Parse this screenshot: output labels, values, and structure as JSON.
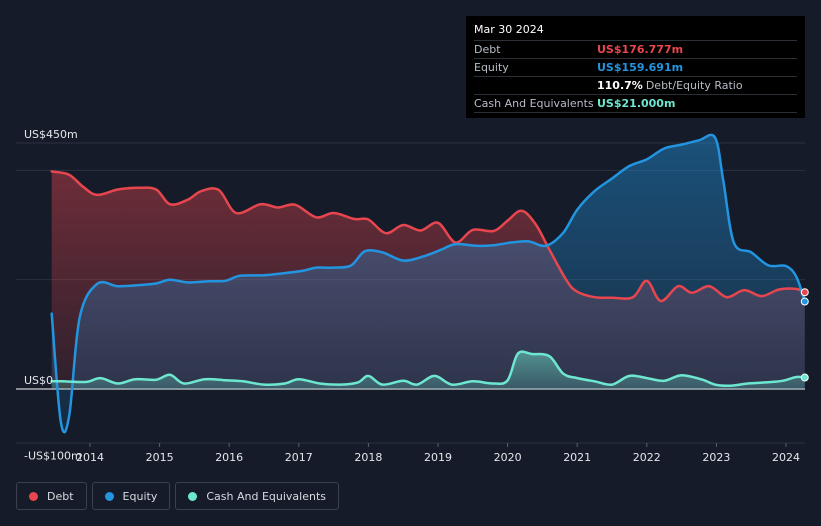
{
  "tooltip": {
    "date": "Mar 30 2024",
    "rows": [
      {
        "label": "Debt",
        "value": "US$176.777m",
        "color": "#e8464f"
      },
      {
        "label": "Equity",
        "value": "US$159.691m",
        "color": "#2394df"
      },
      {
        "label": "",
        "value": "110.7%",
        "unit": "Debt/Equity Ratio",
        "color": "#ffffff"
      },
      {
        "label": "Cash And Equivalents",
        "value": "US$21.000m",
        "color": "#6ee7d0"
      }
    ]
  },
  "legend": [
    {
      "label": "Debt",
      "color": "#e8464f"
    },
    {
      "label": "Equity",
      "color": "#2394df"
    },
    {
      "label": "Cash And Equivalents",
      "color": "#6ee7d0"
    }
  ],
  "chart_data": {
    "type": "area",
    "title": "",
    "xlabel": "",
    "ylabel": "",
    "ylim": [
      -100,
      450
    ],
    "y_tick_labels": [
      {
        "value": 450,
        "label": "US$450m"
      },
      {
        "value": 0,
        "label": "US$0"
      },
      {
        "value": -100,
        "label": "-US$100m"
      }
    ],
    "x_ticks": [
      "2014",
      "2015",
      "2016",
      "2017",
      "2018",
      "2019",
      "2020",
      "2021",
      "2022",
      "2023",
      "2024"
    ],
    "xlim": [
      2013.4,
      2024.27
    ],
    "legend_position": "bottom-left",
    "series": [
      {
        "name": "Debt",
        "color": "#e8464f",
        "points": [
          [
            2013.45,
            398
          ],
          [
            2013.7,
            392
          ],
          [
            2013.9,
            370
          ],
          [
            2014.1,
            355
          ],
          [
            2014.4,
            365
          ],
          [
            2014.7,
            368
          ],
          [
            2014.95,
            365
          ],
          [
            2015.15,
            338
          ],
          [
            2015.4,
            346
          ],
          [
            2015.6,
            362
          ],
          [
            2015.85,
            364
          ],
          [
            2016.1,
            322
          ],
          [
            2016.45,
            338
          ],
          [
            2016.7,
            332
          ],
          [
            2016.95,
            337
          ],
          [
            2017.25,
            314
          ],
          [
            2017.5,
            322
          ],
          [
            2017.8,
            311
          ],
          [
            2018.0,
            310
          ],
          [
            2018.25,
            285
          ],
          [
            2018.5,
            300
          ],
          [
            2018.75,
            290
          ],
          [
            2019.0,
            304
          ],
          [
            2019.25,
            268
          ],
          [
            2019.5,
            291
          ],
          [
            2019.8,
            289
          ],
          [
            2020.0,
            308
          ],
          [
            2020.2,
            326
          ],
          [
            2020.4,
            302
          ],
          [
            2020.6,
            255
          ],
          [
            2020.85,
            198
          ],
          [
            2021.0,
            178
          ],
          [
            2021.25,
            168
          ],
          [
            2021.5,
            167
          ],
          [
            2021.8,
            168
          ],
          [
            2022.0,
            198
          ],
          [
            2022.2,
            161
          ],
          [
            2022.45,
            188
          ],
          [
            2022.65,
            176
          ],
          [
            2022.9,
            188
          ],
          [
            2023.15,
            168
          ],
          [
            2023.4,
            181
          ],
          [
            2023.65,
            170
          ],
          [
            2023.9,
            182
          ],
          [
            2024.15,
            183
          ],
          [
            2024.27,
            177
          ]
        ]
      },
      {
        "name": "Equity",
        "color": "#2394df",
        "points": [
          [
            2013.45,
            138
          ],
          [
            2013.58,
            -60
          ],
          [
            2013.7,
            -50
          ],
          [
            2013.85,
            130
          ],
          [
            2014.1,
            192
          ],
          [
            2014.4,
            188
          ],
          [
            2014.7,
            190
          ],
          [
            2014.95,
            193
          ],
          [
            2015.15,
            200
          ],
          [
            2015.4,
            195
          ],
          [
            2015.7,
            197
          ],
          [
            2015.95,
            198
          ],
          [
            2016.15,
            207
          ],
          [
            2016.5,
            208
          ],
          [
            2016.8,
            212
          ],
          [
            2017.05,
            216
          ],
          [
            2017.25,
            222
          ],
          [
            2017.5,
            222
          ],
          [
            2017.75,
            226
          ],
          [
            2017.95,
            252
          ],
          [
            2018.2,
            250
          ],
          [
            2018.5,
            235
          ],
          [
            2018.8,
            243
          ],
          [
            2019.05,
            255
          ],
          [
            2019.25,
            265
          ],
          [
            2019.55,
            262
          ],
          [
            2019.8,
            263
          ],
          [
            2020.05,
            268
          ],
          [
            2020.3,
            270
          ],
          [
            2020.55,
            262
          ],
          [
            2020.8,
            286
          ],
          [
            2021.0,
            328
          ],
          [
            2021.25,
            362
          ],
          [
            2021.5,
            385
          ],
          [
            2021.75,
            408
          ],
          [
            2022.0,
            420
          ],
          [
            2022.25,
            440
          ],
          [
            2022.5,
            447
          ],
          [
            2022.75,
            455
          ],
          [
            2022.98,
            460
          ],
          [
            2023.1,
            380
          ],
          [
            2023.25,
            268
          ],
          [
            2023.5,
            250
          ],
          [
            2023.75,
            226
          ],
          [
            2024.0,
            225
          ],
          [
            2024.15,
            205
          ],
          [
            2024.27,
            160
          ]
        ]
      },
      {
        "name": "Cash And Equivalents",
        "color": "#6ee7d0",
        "points": [
          [
            2013.45,
            14
          ],
          [
            2013.6,
            14
          ],
          [
            2013.95,
            13
          ],
          [
            2014.15,
            20
          ],
          [
            2014.4,
            10
          ],
          [
            2014.65,
            18
          ],
          [
            2014.95,
            17
          ],
          [
            2015.15,
            26
          ],
          [
            2015.35,
            10
          ],
          [
            2015.65,
            18
          ],
          [
            2015.95,
            16
          ],
          [
            2016.2,
            14
          ],
          [
            2016.5,
            8
          ],
          [
            2016.8,
            10
          ],
          [
            2017.0,
            18
          ],
          [
            2017.3,
            10
          ],
          [
            2017.6,
            8
          ],
          [
            2017.85,
            12
          ],
          [
            2018.0,
            24
          ],
          [
            2018.2,
            8
          ],
          [
            2018.5,
            15
          ],
          [
            2018.7,
            8
          ],
          [
            2018.95,
            24
          ],
          [
            2019.2,
            8
          ],
          [
            2019.5,
            14
          ],
          [
            2019.8,
            10
          ],
          [
            2020.0,
            16
          ],
          [
            2020.15,
            65
          ],
          [
            2020.35,
            64
          ],
          [
            2020.6,
            60
          ],
          [
            2020.8,
            28
          ],
          [
            2021.0,
            20
          ],
          [
            2021.25,
            14
          ],
          [
            2021.5,
            8
          ],
          [
            2021.75,
            24
          ],
          [
            2022.0,
            20
          ],
          [
            2022.25,
            15
          ],
          [
            2022.5,
            25
          ],
          [
            2022.8,
            17
          ],
          [
            2022.98,
            8
          ],
          [
            2023.2,
            6
          ],
          [
            2023.45,
            10
          ],
          [
            2023.7,
            12
          ],
          [
            2023.95,
            15
          ],
          [
            2024.15,
            22
          ],
          [
            2024.27,
            21
          ]
        ]
      }
    ]
  }
}
